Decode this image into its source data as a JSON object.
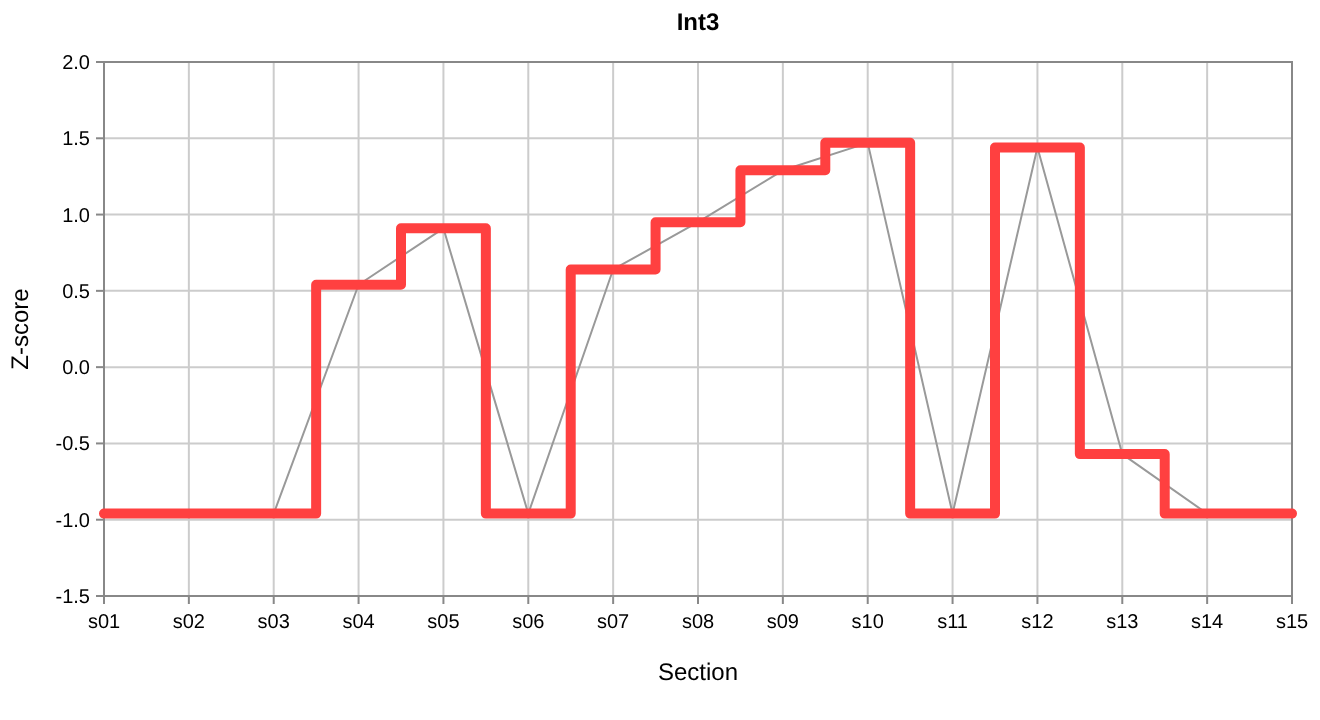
{
  "chart_data": {
    "type": "line",
    "title": "Int3",
    "xlabel": "Section",
    "ylabel": "Z-score",
    "categories": [
      "s01",
      "s02",
      "s03",
      "s04",
      "s05",
      "s06",
      "s07",
      "s08",
      "s09",
      "s10",
      "s11",
      "s12",
      "s13",
      "s14",
      "s15"
    ],
    "series": [
      {
        "color": "#999999",
        "values": [
          -0.96,
          -0.96,
          -0.96,
          0.54,
          0.91,
          -0.96,
          0.64,
          0.95,
          1.29,
          1.47,
          -0.96,
          1.44,
          -0.57,
          -0.96,
          -0.96
        ]
      },
      {
        "type": "step",
        "color": "#ff4040",
        "values": [
          -0.96,
          -0.96,
          -0.96,
          0.54,
          0.91,
          -0.96,
          0.64,
          0.95,
          1.29,
          1.47,
          -0.96,
          1.44,
          -0.57,
          -0.96,
          -0.96
        ]
      }
    ],
    "ylim": [
      -1.5,
      2.0
    ],
    "yticks": [
      {
        "value": -1.5,
        "label": "-1.5"
      },
      {
        "value": -1,
        "label": "-1.0"
      },
      {
        "value": -0.5,
        "label": "-0.5"
      },
      {
        "value": 0,
        "label": "0.0"
      },
      {
        "value": 0.5,
        "label": "0.5"
      },
      {
        "value": 1,
        "label": "1.0"
      },
      {
        "value": 1.5,
        "label": "1.5"
      },
      {
        "value": 2,
        "label": "2.0"
      }
    ],
    "grid": true,
    "marker": "none"
  }
}
